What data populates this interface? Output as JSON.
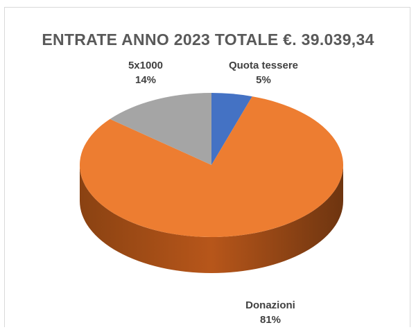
{
  "colors": {
    "Quota tessere": "#4472C4",
    "Donazioni": "#ED7D31",
    "5x1000": "#A5A5A5"
  },
  "chart_data": {
    "type": "pie",
    "style": "3d",
    "title": "ENTRATE ANNO 2023 TOTALE €. 39.039,34",
    "legend": "none",
    "slices": [
      {
        "label": "Quota tessere",
        "value": 5,
        "percent_label": "5%",
        "color": "#4472C4"
      },
      {
        "label": "Donazioni",
        "value": 81,
        "percent_label": "81%",
        "color": "#ED7D31"
      },
      {
        "label": "5x1000",
        "value": 14,
        "percent_label": "14%",
        "color": "#A5A5A5"
      }
    ]
  }
}
